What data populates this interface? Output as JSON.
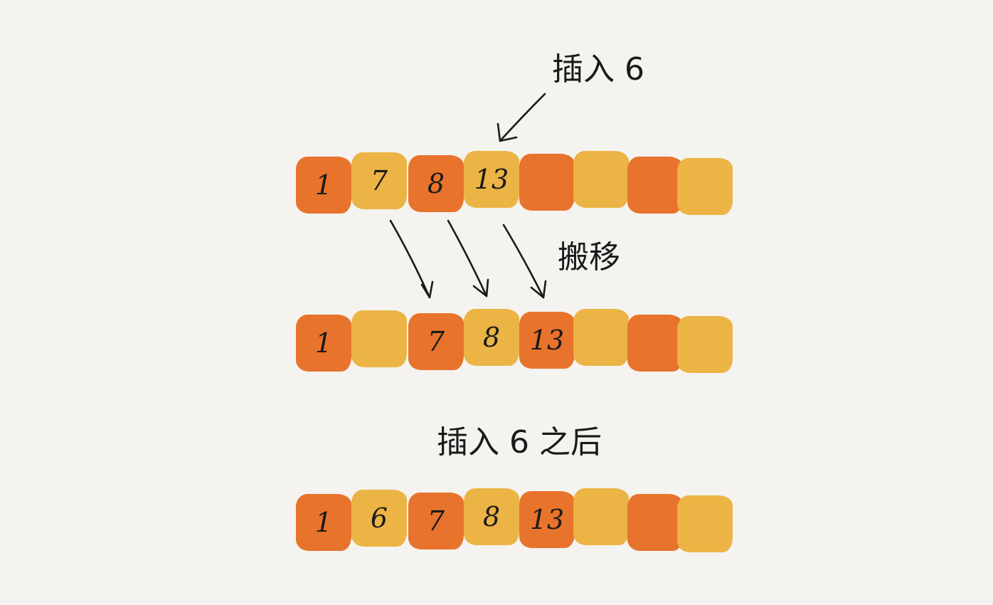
{
  "labels": {
    "insert": "插入 6",
    "move": "搬移",
    "after": "插入 6 之后"
  },
  "colors": {
    "background": "#f4f3ef",
    "dark_cell": "#e8732c",
    "light_cell": "#ebb444",
    "ink": "#1a1a1a"
  },
  "arrays": [
    {
      "name": "before",
      "cells": [
        {
          "value": "1",
          "color": "dark"
        },
        {
          "value": "7",
          "color": "light"
        },
        {
          "value": "8",
          "color": "dark"
        },
        {
          "value": "13",
          "color": "light"
        },
        {
          "value": "",
          "color": "dark"
        },
        {
          "value": "",
          "color": "light"
        },
        {
          "value": "",
          "color": "dark"
        },
        {
          "value": "",
          "color": "light"
        }
      ]
    },
    {
      "name": "moved",
      "cells": [
        {
          "value": "1",
          "color": "dark"
        },
        {
          "value": "",
          "color": "light"
        },
        {
          "value": "7",
          "color": "dark"
        },
        {
          "value": "8",
          "color": "light"
        },
        {
          "value": "13",
          "color": "dark"
        },
        {
          "value": "",
          "color": "light"
        },
        {
          "value": "",
          "color": "dark"
        },
        {
          "value": "",
          "color": "light"
        }
      ]
    },
    {
      "name": "after",
      "cells": [
        {
          "value": "1",
          "color": "dark"
        },
        {
          "value": "6",
          "color": "light"
        },
        {
          "value": "7",
          "color": "dark"
        },
        {
          "value": "8",
          "color": "light"
        },
        {
          "value": "13",
          "color": "dark"
        },
        {
          "value": "",
          "color": "light"
        },
        {
          "value": "",
          "color": "dark"
        },
        {
          "value": "",
          "color": "light"
        }
      ]
    }
  ]
}
